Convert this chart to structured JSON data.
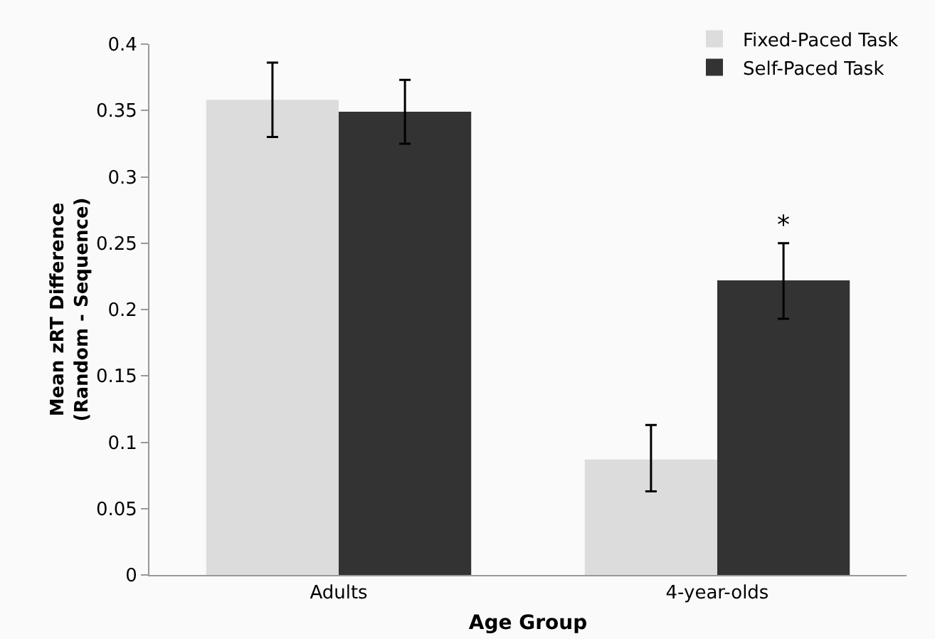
{
  "chart_data": {
    "type": "bar",
    "categories": [
      "Adults",
      "4-year-olds"
    ],
    "xlabel": "Age Group",
    "ylabel": "Mean zRT Difference\n(Random - Sequence)",
    "series": [
      {
        "name": "Fixed-Paced Task",
        "color": "#dcdcdc",
        "values": [
          0.358,
          0.087
        ],
        "errors": [
          [
            0.33,
            0.386
          ],
          [
            0.063,
            0.113
          ]
        ]
      },
      {
        "name": "Self-Paced Task",
        "color": "#333333",
        "values": [
          0.349,
          0.222
        ],
        "errors": [
          [
            0.325,
            0.373
          ],
          [
            0.193,
            0.25
          ]
        ]
      }
    ],
    "ylim": [
      0,
      0.4
    ],
    "yticks": [
      0,
      0.05,
      0.1,
      0.15,
      0.2,
      0.25,
      0.3,
      0.35,
      0.4
    ],
    "grid": false,
    "legend": "top right",
    "annotations": [
      "*"
    ]
  }
}
